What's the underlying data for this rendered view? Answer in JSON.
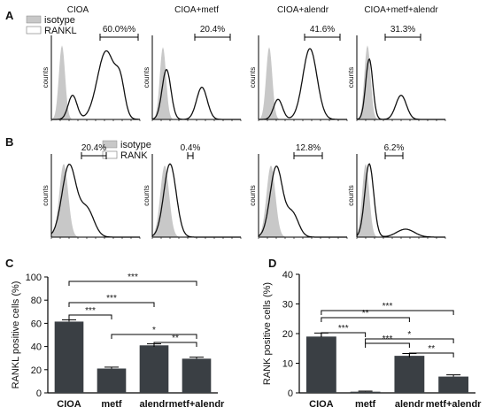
{
  "panel_letters": {
    "A": "A",
    "B": "B",
    "C": "C",
    "D": "D"
  },
  "legend_A": {
    "isotype": "isotype",
    "marker": "RANKL"
  },
  "legend_B": {
    "isotype": "isotype",
    "marker": "RANK"
  },
  "hist_ylabel": "counts",
  "colors": {
    "isotype_fill": "#c8c8c8",
    "bar": "#3a3f44",
    "line": "#111111"
  },
  "histograms_A": [
    {
      "title": "CIOA",
      "percent": "60.0%%"
    },
    {
      "title": "CIOA+metf",
      "percent": "20.4%"
    },
    {
      "title": "CIOA+alendr",
      "percent": "41.6%"
    },
    {
      "title": "CIOA+metf+alendr",
      "percent": "31.3%"
    }
  ],
  "histograms_B": [
    {
      "percent": "20.4%"
    },
    {
      "percent": "0.4%"
    },
    {
      "percent": "12.8%"
    },
    {
      "percent": "6.2%"
    }
  ],
  "chart_data": [
    {
      "type": "bar",
      "panel": "C",
      "categories": [
        "CIOA",
        "metf",
        "alendr",
        "metf+alendr"
      ],
      "values": [
        61.5,
        21,
        41,
        29.5
      ],
      "errors": [
        1.5,
        1.2,
        1.3,
        1.3
      ],
      "ylabel": "RANKL positive cells (%)",
      "ylim": [
        0,
        100
      ],
      "yticks": [
        0,
        20,
        40,
        60,
        80,
        100
      ],
      "significance": [
        {
          "from": 0,
          "to": 3,
          "label": "***"
        },
        {
          "from": 0,
          "to": 2,
          "label": "***"
        },
        {
          "from": 0,
          "to": 1,
          "label": "***"
        },
        {
          "from": 1,
          "to": 3,
          "label": "*"
        },
        {
          "from": 2,
          "to": 3,
          "label": "**"
        }
      ]
    },
    {
      "type": "bar",
      "panel": "D",
      "categories": [
        "CIOA",
        "metf",
        "alendr",
        "metf+alendr"
      ],
      "values": [
        19,
        0.4,
        12.5,
        5.5
      ],
      "errors": [
        1.2,
        0.2,
        0.8,
        0.6
      ],
      "ylabel": "RANK positive cells (%)",
      "ylim": [
        0,
        40
      ],
      "yticks": [
        0,
        10,
        20,
        30,
        40
      ],
      "significance": [
        {
          "from": 0,
          "to": 3,
          "label": "***"
        },
        {
          "from": 0,
          "to": 2,
          "label": "**"
        },
        {
          "from": 0,
          "to": 1,
          "label": "***"
        },
        {
          "from": 1,
          "to": 3,
          "label": "*"
        },
        {
          "from": 1,
          "to": 2,
          "label": "***"
        },
        {
          "from": 2,
          "to": 3,
          "label": "**"
        }
      ]
    }
  ]
}
